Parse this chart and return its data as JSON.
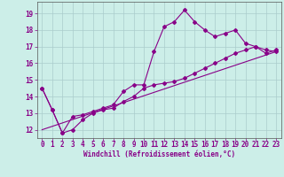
{
  "title": "",
  "xlabel": "Windchill (Refroidissement éolien,°C)",
  "ylabel": "",
  "background_color": "#cceee8",
  "grid_color": "#aacccc",
  "line_color": "#880088",
  "xlim": [
    -0.5,
    23.5
  ],
  "ylim": [
    11.5,
    19.7
  ],
  "xticks": [
    0,
    1,
    2,
    3,
    4,
    5,
    6,
    7,
    8,
    9,
    10,
    11,
    12,
    13,
    14,
    15,
    16,
    17,
    18,
    19,
    20,
    21,
    22,
    23
  ],
  "yticks": [
    12,
    13,
    14,
    15,
    16,
    17,
    18,
    19
  ],
  "line1_x": [
    0,
    1,
    2,
    3,
    4,
    5,
    6,
    7,
    8,
    9,
    10,
    11,
    12,
    13,
    14,
    15,
    16,
    17,
    18,
    19,
    20,
    21,
    22,
    23
  ],
  "line1_y": [
    14.5,
    13.2,
    11.8,
    12.8,
    12.9,
    13.1,
    13.3,
    13.5,
    14.3,
    14.7,
    14.7,
    16.7,
    18.2,
    18.5,
    19.2,
    18.5,
    18.0,
    17.6,
    17.8,
    18.0,
    17.2,
    17.0,
    16.6,
    16.8
  ],
  "line2_x": [
    0,
    1,
    2,
    3,
    4,
    5,
    6,
    7,
    8,
    9,
    10,
    11,
    12,
    13,
    14,
    15,
    16,
    17,
    18,
    19,
    20,
    21,
    22,
    23
  ],
  "line2_y": [
    14.5,
    13.2,
    11.8,
    12.0,
    12.6,
    13.0,
    13.2,
    13.3,
    13.7,
    14.0,
    14.5,
    14.7,
    14.8,
    14.9,
    15.1,
    15.4,
    15.7,
    16.0,
    16.3,
    16.6,
    16.8,
    17.0,
    16.8,
    16.7
  ],
  "line3_x": [
    0,
    23
  ],
  "line3_y": [
    12.0,
    16.7
  ],
  "xlabel_fontsize": 5.5,
  "tick_fontsize": 5.5,
  "marker": "D",
  "marker_size": 2.0,
  "linewidth": 0.8
}
